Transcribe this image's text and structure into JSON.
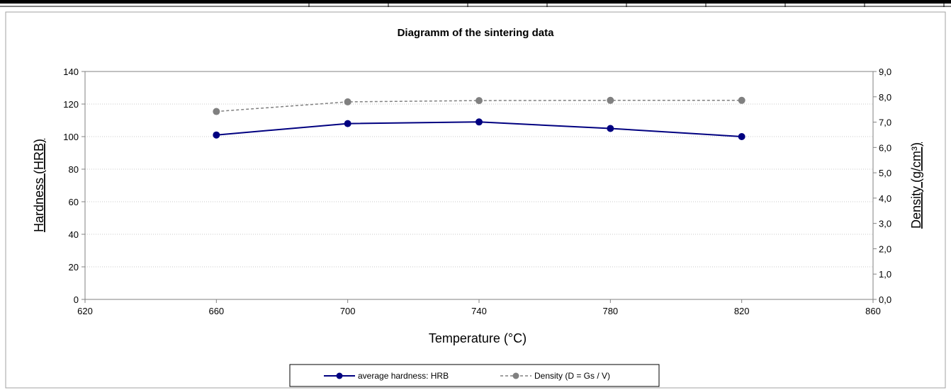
{
  "chart_data": {
    "type": "line",
    "title": "Diagramm of the sintering data",
    "xlabel": "Temperature (°C)",
    "ylabel_left": "Hardness (HRB)",
    "ylabel_right": "Density (g/cm³)",
    "xlim": [
      620,
      860
    ],
    "ylim_left": [
      0,
      140
    ],
    "ylim_right": [
      0,
      9
    ],
    "x_ticks": [
      "620",
      "660",
      "700",
      "740",
      "780",
      "820",
      "860"
    ],
    "y_ticks_left": [
      "0",
      "20",
      "40",
      "60",
      "80",
      "100",
      "120",
      "140"
    ],
    "y_ticks_right": [
      "0,0",
      "1,0",
      "2,0",
      "3,0",
      "4,0",
      "5,0",
      "6,0",
      "7,0",
      "8,0",
      "9,0"
    ],
    "grid": true,
    "legend_position": "bottom",
    "series": [
      {
        "name": "average hardness: HRB",
        "axis": "left",
        "color": "#000080",
        "style": "solid",
        "x": [
          660,
          700,
          740,
          780,
          820
        ],
        "values": [
          101,
          108,
          109,
          105,
          100
        ]
      },
      {
        "name": "Density (D = Gs / V)",
        "axis": "right",
        "color": "#808080",
        "style": "dashed",
        "x": [
          660,
          700,
          740,
          780,
          820
        ],
        "values": [
          7.42,
          7.8,
          7.85,
          7.86,
          7.86
        ]
      }
    ]
  }
}
